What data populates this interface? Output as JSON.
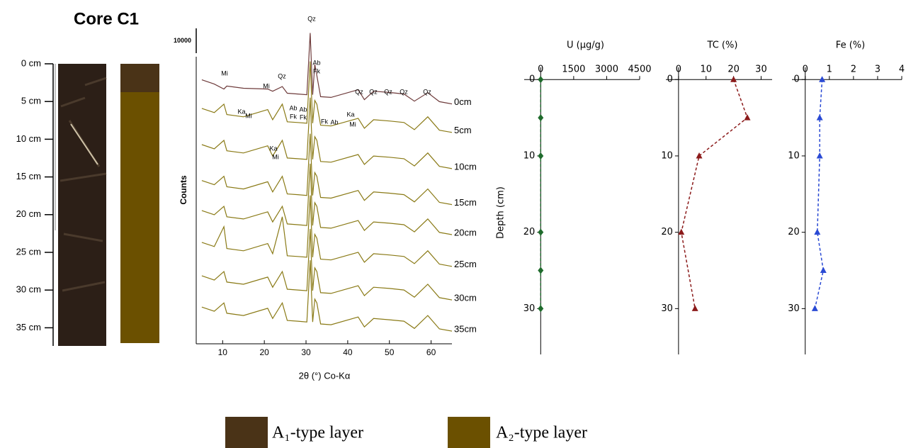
{
  "title": "Core C1",
  "core_scale": {
    "labels": [
      "0 cm",
      "5 cm",
      "10 cm",
      "15 cm",
      "20 cm",
      "25 cm",
      "30 cm",
      "35 cm"
    ]
  },
  "legend": [
    {
      "label": "A₁-type layer",
      "color": "#4a3317"
    },
    {
      "label": "A₂-type layer",
      "color": "#6b5000"
    }
  ],
  "chart_data": [
    {
      "type": "line",
      "xlabel": "2θ (°) Co-Kα",
      "ylabel": "Counts",
      "scale_bar": 10000,
      "x": [
        5,
        8,
        10.3,
        11,
        15,
        20.8,
        22,
        24.3,
        25.5,
        28,
        30.2,
        31,
        31.6,
        32.1,
        32.6,
        33.5,
        36,
        42.5,
        44,
        46.2,
        50,
        53.5,
        56,
        59.2,
        62,
        65
      ],
      "xlim": [
        4,
        65
      ],
      "xticks": [
        10,
        20,
        30,
        40,
        50,
        60
      ],
      "ylim": [
        0,
        130000
      ],
      "series": [
        {
          "name": "0cm",
          "color": "#6e3b3b",
          "values": [
            106400,
            104700,
            102700,
            103900,
            103000,
            102700,
            101800,
            103700,
            101000,
            100700,
            100400,
            125300,
            100400,
            112700,
            108100,
            99600,
            99300,
            102400,
            98400,
            101800,
            101300,
            100700,
            97800,
            101200,
            97600,
            96700
          ]
        },
        {
          "name": "5cm",
          "color": "#8a7a16",
          "values": [
            94900,
            93200,
            96600,
            92400,
            91500,
            94400,
            90300,
            96600,
            89500,
            89200,
            88900,
            113800,
            88900,
            98100,
            96600,
            88100,
            87800,
            90900,
            86900,
            90300,
            89800,
            89200,
            86300,
            91500,
            86100,
            85200
          ]
        },
        {
          "name": "10cm",
          "color": "#8a7a16",
          "values": [
            80300,
            78600,
            82000,
            77800,
            76900,
            79800,
            75700,
            82000,
            74900,
            74600,
            74300,
            99200,
            74300,
            83500,
            82000,
            73500,
            73200,
            76300,
            72300,
            75700,
            75200,
            74600,
            71700,
            76900,
            71500,
            70600
          ]
        },
        {
          "name": "15cm",
          "color": "#8a7a16",
          "values": [
            65800,
            64100,
            67500,
            63300,
            62400,
            65300,
            61200,
            67500,
            60400,
            60100,
            59800,
            84700,
            59800,
            69000,
            67500,
            59000,
            58700,
            61800,
            57800,
            61200,
            60700,
            60100,
            57200,
            62400,
            57000,
            56100
          ]
        },
        {
          "name": "20cm",
          "color": "#8a7a16",
          "values": [
            53700,
            52000,
            55400,
            51200,
            50300,
            53200,
            49100,
            55400,
            48300,
            48000,
            47700,
            72600,
            47700,
            56900,
            55400,
            46900,
            46600,
            49700,
            45700,
            49100,
            48600,
            48000,
            45100,
            50300,
            44900,
            44000
          ]
        },
        {
          "name": "25cm",
          "color": "#8a7a16",
          "values": [
            40900,
            39200,
            47200,
            38400,
            37500,
            40400,
            36300,
            51200,
            35500,
            35200,
            34900,
            59800,
            34900,
            44100,
            42600,
            34100,
            33800,
            36900,
            32900,
            36300,
            35800,
            35200,
            32300,
            37500,
            32100,
            31200
          ]
        },
        {
          "name": "30cm",
          "color": "#8a7a16",
          "values": [
            27400,
            25700,
            29100,
            24900,
            24000,
            26900,
            22800,
            29100,
            22000,
            21700,
            21400,
            46300,
            21400,
            30600,
            29100,
            20600,
            20300,
            23400,
            19400,
            22800,
            22300,
            21700,
            18800,
            24000,
            18600,
            17700
          ]
        },
        {
          "name": "35cm",
          "color": "#8a7a16",
          "values": [
            14800,
            13100,
            16500,
            12300,
            11400,
            14300,
            10200,
            16500,
            9400,
            9100,
            8800,
            33700,
            8800,
            18000,
            16500,
            8000,
            7700,
            10800,
            6800,
            10200,
            9700,
            9100,
            6200,
            11400,
            6000,
            5100
          ]
        }
      ],
      "annotations": [
        "Qz",
        "Ab",
        "Fk",
        "Mi",
        "Mi",
        "Qz",
        "Qz",
        "Qz",
        "Qz",
        "Qz",
        "Qz",
        "Ka",
        "Mi",
        "Ab",
        "Fk",
        "Ab",
        "Fk",
        "Fk",
        "Ab",
        "Ka",
        "Mi",
        "Ka",
        "Mi"
      ]
    },
    {
      "type": "profile",
      "title": "U (μg/g)",
      "ylabel": "Depth (cm)",
      "depth": [
        0,
        5,
        10,
        20,
        25,
        30
      ],
      "values": [
        0,
        0,
        0,
        0,
        0,
        0
      ],
      "color": "#1f6b2c",
      "marker": "diamond",
      "xlim": [
        -750,
        4500
      ],
      "xticks": [
        0,
        1500,
        3000,
        4500
      ],
      "ylim": [
        -1.6,
        36
      ],
      "yticks": [
        0,
        10,
        20,
        30
      ]
    },
    {
      "type": "profile",
      "title": "TC (%)",
      "depth": [
        0,
        5,
        10,
        20,
        30
      ],
      "values": [
        20,
        25,
        7.5,
        1,
        6
      ],
      "color": "#8b1a1a",
      "marker": "triangle",
      "xlim": [
        -4.6,
        34
      ],
      "xticks": [
        0,
        10,
        20,
        30
      ],
      "ylim": [
        -1.6,
        36
      ],
      "yticks": [
        0,
        10,
        20,
        30
      ]
    },
    {
      "type": "profile",
      "title": "Fe (%)",
      "depth": [
        0,
        5,
        10,
        20,
        25,
        30
      ],
      "values": [
        0.7,
        0.6,
        0.6,
        0.5,
        0.75,
        0.4
      ],
      "color": "#2a4ad4",
      "marker": "triangle",
      "xlim": [
        -0.55,
        4
      ],
      "xticks": [
        0,
        1,
        2,
        3,
        4
      ],
      "ylim": [
        -1.6,
        36
      ],
      "yticks": [
        0,
        10,
        20,
        30
      ]
    }
  ]
}
